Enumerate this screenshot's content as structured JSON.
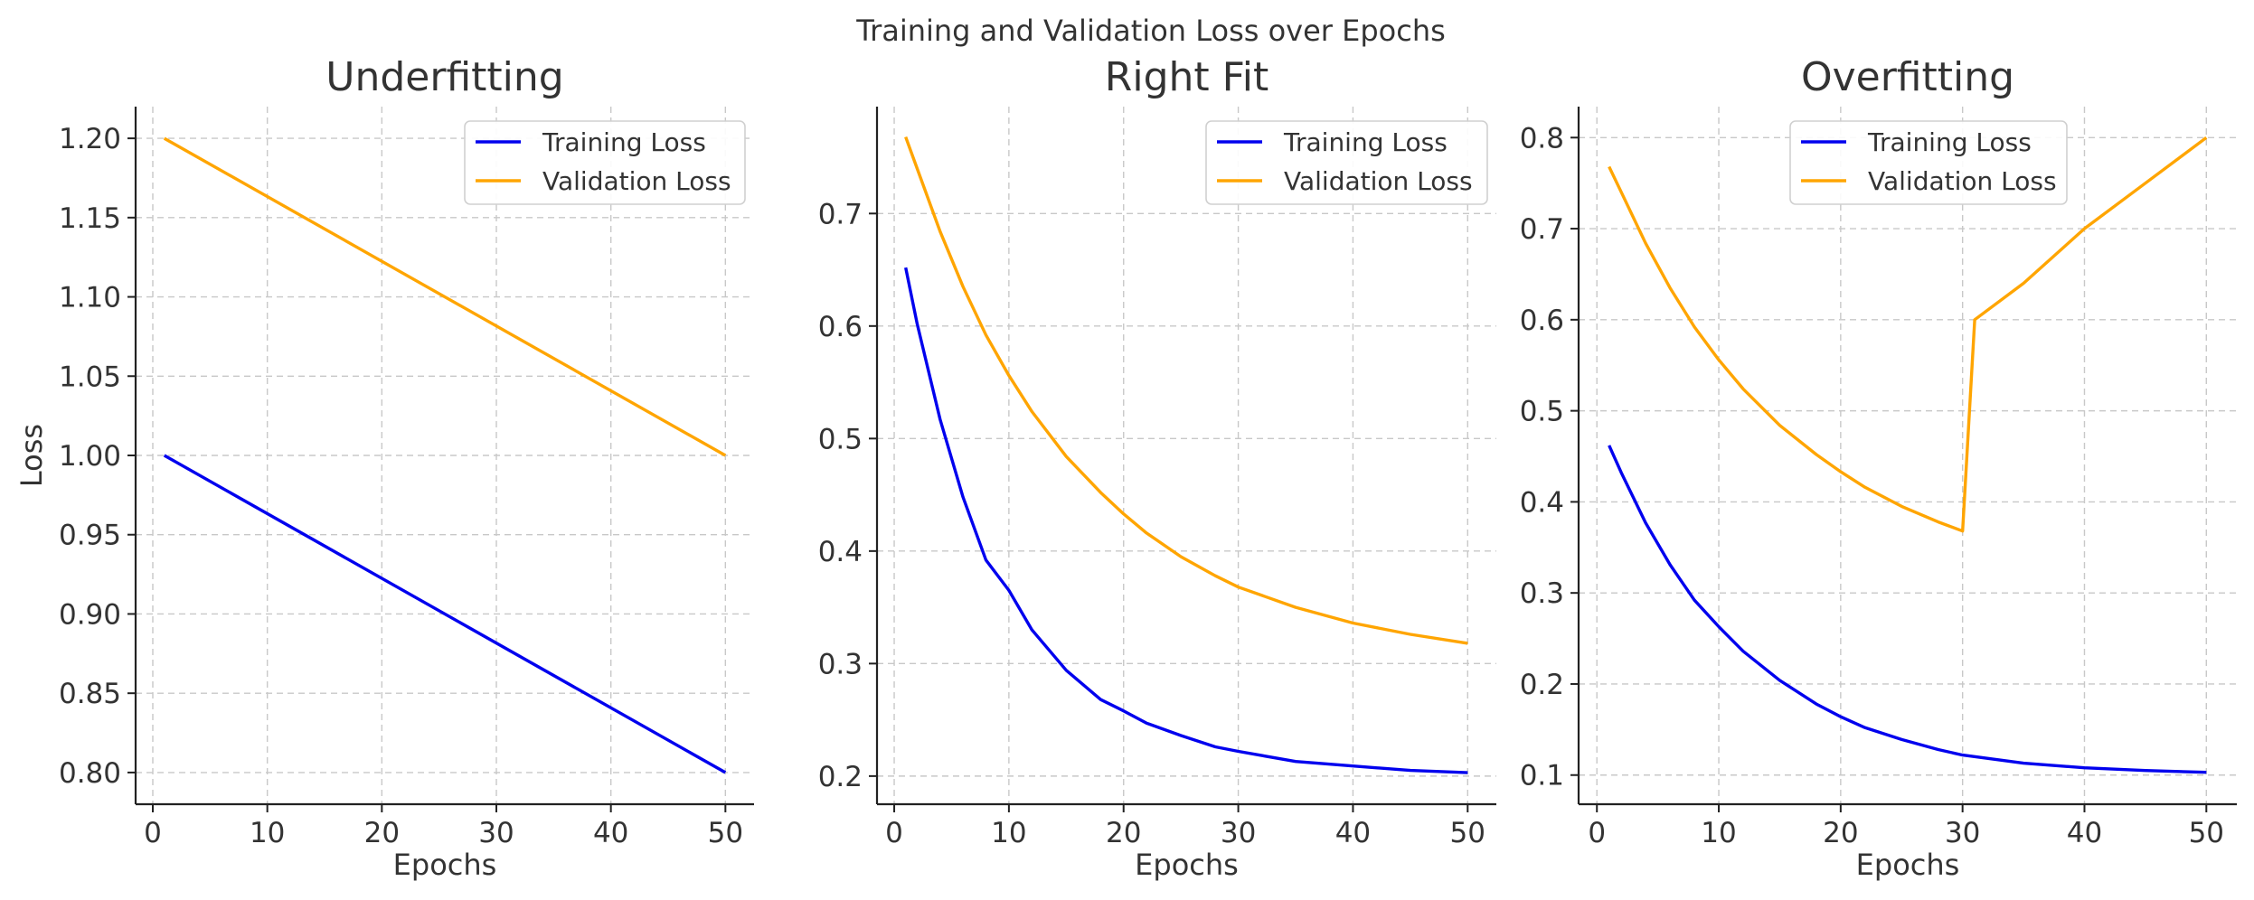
{
  "figure": {
    "suptitle": "Training and Validation Loss over Epochs"
  },
  "colors": {
    "training": "#0000ee",
    "validation": "#ffa500"
  },
  "chart_data": [
    {
      "type": "line",
      "title": "Underfitting",
      "xlabel": "Epochs",
      "ylabel": "Loss",
      "xlim": [
        -1.5,
        52.5
      ],
      "ylim": [
        0.78,
        1.22
      ],
      "xticks": [
        0,
        10,
        20,
        30,
        40,
        50
      ],
      "yticks": [
        0.8,
        0.85,
        0.9,
        0.95,
        1.0,
        1.05,
        1.1,
        1.15,
        1.2
      ],
      "ytick_labels": [
        "0.80",
        "0.85",
        "0.90",
        "0.95",
        "1.00",
        "1.05",
        "1.10",
        "1.15",
        "1.20"
      ],
      "grid": true,
      "legend": "top-right",
      "series": [
        {
          "name": "Training Loss",
          "color": "#0000ee",
          "x": [
            1,
            50
          ],
          "y": [
            1.0,
            0.8
          ]
        },
        {
          "name": "Validation Loss",
          "color": "#ffa500",
          "x": [
            1,
            50
          ],
          "y": [
            1.2,
            1.0
          ]
        }
      ]
    },
    {
      "type": "line",
      "title": "Right Fit",
      "xlabel": "Epochs",
      "ylabel": "",
      "xlim": [
        -1.5,
        52.5
      ],
      "ylim": [
        0.175,
        0.795
      ],
      "xticks": [
        0,
        10,
        20,
        30,
        40,
        50
      ],
      "yticks": [
        0.2,
        0.3,
        0.4,
        0.5,
        0.6,
        0.7
      ],
      "ytick_labels": [
        "0.2",
        "0.3",
        "0.4",
        "0.5",
        "0.6",
        "0.7"
      ],
      "grid": true,
      "legend": "top-right",
      "series": [
        {
          "name": "Training Loss",
          "color": "#0000ee",
          "x": [
            1,
            2,
            4,
            6,
            8,
            10,
            12,
            15,
            18,
            20,
            22,
            25,
            28,
            30,
            35,
            40,
            45,
            50
          ],
          "y": [
            0.652,
            0.602,
            0.517,
            0.448,
            0.392,
            0.365,
            0.33,
            0.294,
            0.268,
            0.258,
            0.247,
            0.236,
            0.226,
            0.222,
            0.213,
            0.209,
            0.205,
            0.203
          ]
        },
        {
          "name": "Validation Loss",
          "color": "#ffa500",
          "x": [
            1,
            2,
            4,
            6,
            8,
            10,
            12,
            15,
            18,
            20,
            22,
            25,
            28,
            30,
            35,
            40,
            45,
            50
          ],
          "y": [
            0.768,
            0.74,
            0.684,
            0.635,
            0.592,
            0.556,
            0.524,
            0.484,
            0.452,
            0.433,
            0.416,
            0.395,
            0.378,
            0.368,
            0.35,
            0.336,
            0.326,
            0.318
          ]
        }
      ]
    },
    {
      "type": "line",
      "title": "Overfitting",
      "xlabel": "Epochs",
      "ylabel": "",
      "xlim": [
        -1.5,
        52.5
      ],
      "ylim": [
        0.068,
        0.834
      ],
      "xticks": [
        0,
        10,
        20,
        30,
        40,
        50
      ],
      "yticks": [
        0.1,
        0.2,
        0.3,
        0.4,
        0.5,
        0.6,
        0.7,
        0.8
      ],
      "ytick_labels": [
        "0.1",
        "0.2",
        "0.3",
        "0.4",
        "0.5",
        "0.6",
        "0.7",
        "0.8"
      ],
      "grid": true,
      "legend": "top-center",
      "series": [
        {
          "name": "Training Loss",
          "color": "#0000ee",
          "x": [
            1,
            2,
            4,
            6,
            8,
            10,
            12,
            15,
            18,
            20,
            22,
            25,
            28,
            30,
            35,
            40,
            45,
            50
          ],
          "y": [
            0.462,
            0.432,
            0.377,
            0.331,
            0.292,
            0.263,
            0.236,
            0.204,
            0.178,
            0.164,
            0.152,
            0.139,
            0.128,
            0.122,
            0.113,
            0.108,
            0.105,
            0.103
          ]
        },
        {
          "name": "Validation Loss",
          "color": "#ffa500",
          "x": [
            1,
            2,
            4,
            6,
            8,
            10,
            12,
            15,
            18,
            20,
            22,
            25,
            28,
            30,
            31,
            35,
            40,
            45,
            50
          ],
          "y": [
            0.768,
            0.74,
            0.684,
            0.635,
            0.592,
            0.556,
            0.524,
            0.484,
            0.452,
            0.433,
            0.416,
            0.395,
            0.378,
            0.368,
            0.6,
            0.64,
            0.7,
            0.75,
            0.8
          ]
        }
      ]
    }
  ]
}
